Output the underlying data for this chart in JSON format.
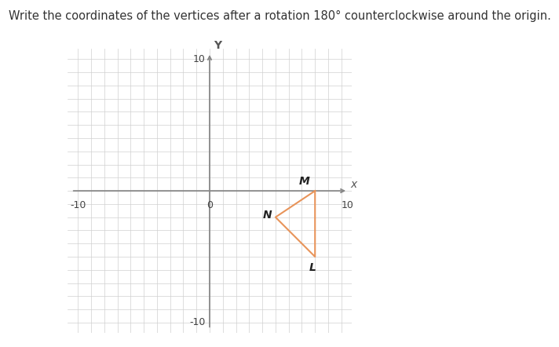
{
  "title": "Write the coordinates of the vertices after a rotation 180° counterclockwise around the origin.",
  "xlim": [
    -10,
    10
  ],
  "ylim": [
    -10,
    10
  ],
  "grid_color": "#d0d0d0",
  "axis_color": "#888888",
  "triangle_vertices": {
    "M": [
      8,
      0
    ],
    "N": [
      5,
      -2
    ],
    "L": [
      8,
      -5
    ]
  },
  "triangle_color": "#e8945a",
  "label_fontsize": 10,
  "label_fontweight": "bold",
  "bg_color": "#ffffff",
  "title_fontsize": 10.5,
  "title_color": "#333333",
  "tick_fontsize": 9,
  "axis_label_fontsize": 10
}
